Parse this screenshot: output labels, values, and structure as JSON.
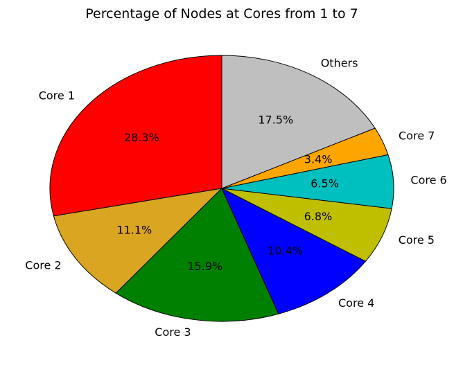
{
  "chart_data": {
    "type": "pie",
    "title": "Percentage of Nodes at Cores from 1 to 7",
    "categories": [
      "Core 1",
      "Core 2",
      "Core 3",
      "Core 4",
      "Core 5",
      "Core 6",
      "Core 7",
      "Others"
    ],
    "values": [
      28.3,
      11.1,
      15.9,
      10.4,
      6.8,
      6.5,
      3.4,
      17.5
    ],
    "percent_labels": [
      "28.3%",
      "11.1%",
      "15.9%",
      "10.4%",
      "6.8%",
      "6.5%",
      "3.4%",
      "17.5%"
    ],
    "colors": [
      "#ff0000",
      "#daa520",
      "#008000",
      "#0000ff",
      "#bfbf00",
      "#00bfbf",
      "#ffa500",
      "#bfbfbf"
    ],
    "start_angle_deg": 90,
    "direction": "counterclockwise",
    "legend": "none"
  }
}
